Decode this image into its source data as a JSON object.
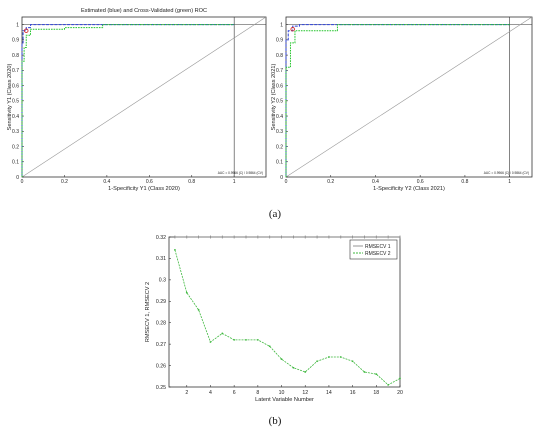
{
  "figure": {
    "caption_a": "(a)",
    "caption_b": "(b)"
  },
  "colors": {
    "estimated": "#2b3fd6",
    "cross_validated": "#22c42a",
    "rmsecv1": "#8a8a8a",
    "rmsecv2": "#3fb83f",
    "marker": "#d12a2a",
    "diagonal": "#9a9a9a"
  },
  "chart_data": [
    {
      "type": "line",
      "title": "Estimated (blue) and Cross-Validated (green) ROC",
      "xlabel": "1-Specificity Y1 (Class 2020)",
      "ylabel": "Sensitivity Y1 (Class 2020)",
      "xlim": [
        0,
        1.15
      ],
      "ylim": [
        0,
        1.05
      ],
      "x_ticks": [
        "0",
        "0.2",
        "0.4",
        "0.6",
        "0.8",
        "1"
      ],
      "y_ticks": [
        "0",
        "0.1",
        "0.2",
        "0.3",
        "0.4",
        "0.5",
        "0.6",
        "0.7",
        "0.8",
        "0.9",
        "1"
      ],
      "grid": false,
      "annotation": "AUC = 0.9966 (C) / 0.9864 (CV)",
      "series": [
        {
          "x": [
            0,
            0,
            0.005,
            0.005,
            0.02,
            0.02,
            0.04,
            0.04,
            0.1,
            1
          ],
          "y": [
            0,
            0.88,
            0.88,
            0.96,
            0.96,
            0.98,
            0.98,
            1.0,
            1.0,
            1.0
          ]
        },
        {
          "x": [
            0,
            0,
            0.01,
            0.01,
            0.02,
            0.02,
            0.04,
            0.04,
            0.2,
            0.2,
            0.38,
            0.38,
            1
          ],
          "y": [
            0,
            0.76,
            0.76,
            0.85,
            0.85,
            0.93,
            0.93,
            0.97,
            0.97,
            0.98,
            0.98,
            1.0,
            1.0
          ]
        }
      ],
      "reference_line": {
        "x": [
          0,
          1.15
        ],
        "y": [
          0,
          1.05
        ]
      },
      "threshold_point": {
        "x": 0.02,
        "y": 0.96
      },
      "axis_at_one": {
        "x": 1,
        "y": 1
      }
    },
    {
      "type": "line",
      "title": "",
      "xlabel": "1-Specificity Y2 (Class 2021)",
      "ylabel": "Sensitivity Y2 (Class 2021)",
      "xlim": [
        0,
        1.1
      ],
      "ylim": [
        0,
        1.05
      ],
      "x_ticks": [
        "0",
        "0.2",
        "0.4",
        "0.6",
        "0.8",
        "1"
      ],
      "y_ticks": [
        "0",
        "0.1",
        "0.2",
        "0.3",
        "0.4",
        "0.5",
        "0.6",
        "0.7",
        "0.8",
        "0.9",
        "1"
      ],
      "grid": false,
      "annotation": "AUC = 0.9966 (C) / 0.9864 (CV)",
      "series": [
        {
          "x": [
            0,
            0,
            0.01,
            0.01,
            0.03,
            0.03,
            0.06,
            0.06,
            1
          ],
          "y": [
            0,
            0.9,
            0.9,
            0.96,
            0.96,
            0.99,
            0.99,
            1.0,
            1.0
          ]
        },
        {
          "x": [
            0,
            0,
            0.02,
            0.02,
            0.04,
            0.04,
            0.23,
            0.23,
            1
          ],
          "y": [
            0,
            0.72,
            0.72,
            0.88,
            0.88,
            0.96,
            0.96,
            1.0,
            1.0
          ]
        }
      ],
      "reference_line": {
        "x": [
          0,
          1.1
        ],
        "y": [
          0,
          1.05
        ]
      },
      "threshold_point": {
        "x": 0.03,
        "y": 0.97
      },
      "axis_at_one": {
        "x": 1,
        "y": 1
      }
    },
    {
      "type": "line",
      "title": "",
      "xlabel": "Latent Variable Number",
      "ylabel": "RMSECV 1, RMSECV 2",
      "xlim": [
        0.5,
        20
      ],
      "ylim": [
        0.25,
        0.32
      ],
      "x_ticks": [
        "2",
        "4",
        "6",
        "8",
        "10",
        "12",
        "14",
        "16",
        "18",
        "20"
      ],
      "y_ticks": [
        "0.25",
        "0.26",
        "0.27",
        "0.28",
        "0.29",
        "0.3",
        "0.31",
        "0.32"
      ],
      "grid": false,
      "legend_position": "top-right",
      "x": [
        1,
        2,
        3,
        4,
        5,
        6,
        7,
        8,
        9,
        10,
        11,
        12,
        13,
        14,
        15,
        16,
        17,
        18,
        19,
        20
      ],
      "series": [
        {
          "name": "RMSECV 1",
          "values": [
            0.32,
            0.32,
            0.32,
            0.32,
            0.32,
            0.32,
            0.32,
            0.32,
            0.32,
            0.32,
            0.32,
            0.32,
            0.32,
            0.32,
            0.32,
            0.32,
            0.32,
            0.32,
            0.32,
            0.32
          ]
        },
        {
          "name": "RMSECV 2",
          "values": [
            0.314,
            0.294,
            0.286,
            0.271,
            0.275,
            0.272,
            0.272,
            0.272,
            0.269,
            0.263,
            0.259,
            0.257,
            0.262,
            0.264,
            0.264,
            0.262,
            0.257,
            0.256,
            0.251,
            0.254
          ]
        }
      ]
    }
  ]
}
